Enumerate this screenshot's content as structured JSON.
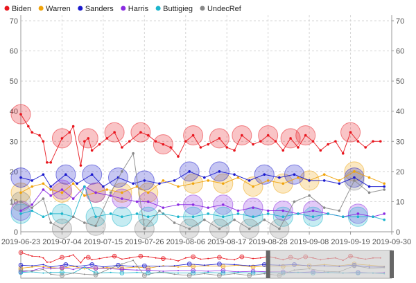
{
  "chart_data": {
    "type": "scatter",
    "legend_position": "top-left",
    "grid": true,
    "ylim": [
      0,
      70
    ],
    "y_ticks": [
      "0",
      "10",
      "20",
      "30",
      "40",
      "50",
      "60",
      "70"
    ],
    "x_ticks": [
      "2019-06-23",
      "2019-07-04",
      "2019-07-15",
      "2019-07-26",
      "2019-08-06",
      "2019-08-17",
      "2019-08-28",
      "2019-09-08",
      "2019-09-19",
      "2019-09-30"
    ],
    "xlim": [
      "2019-06-23",
      "2019-09-30"
    ],
    "series": [
      {
        "name": "Biden",
        "color": "#e8151d",
        "points": [
          {
            "date": "2019-06-23",
            "value": 39,
            "big": true
          },
          {
            "date": "2019-06-25",
            "value": 35
          },
          {
            "date": "2019-06-26",
            "value": 33
          },
          {
            "date": "2019-06-28",
            "value": 32
          },
          {
            "date": "2019-06-29",
            "value": 30
          },
          {
            "date": "2019-06-30",
            "value": 23
          },
          {
            "date": "2019-07-01",
            "value": 23
          },
          {
            "date": "2019-07-04",
            "value": 31,
            "big": true
          },
          {
            "date": "2019-07-06",
            "value": 33
          },
          {
            "date": "2019-07-07",
            "value": 35
          },
          {
            "date": "2019-07-09",
            "value": 22
          },
          {
            "date": "2019-07-10",
            "value": 30
          },
          {
            "date": "2019-07-11",
            "value": 31,
            "big": true
          },
          {
            "date": "2019-07-12",
            "value": 27
          },
          {
            "date": "2019-07-14",
            "value": 29
          },
          {
            "date": "2019-07-16",
            "value": 31
          },
          {
            "date": "2019-07-18",
            "value": 33,
            "big": true
          },
          {
            "date": "2019-07-20",
            "value": 28
          },
          {
            "date": "2019-07-22",
            "value": 30
          },
          {
            "date": "2019-07-25",
            "value": 33,
            "big": true
          },
          {
            "date": "2019-07-27",
            "value": 32
          },
          {
            "date": "2019-07-29",
            "value": 30
          },
          {
            "date": "2019-07-31",
            "value": 29,
            "big": true
          },
          {
            "date": "2019-08-02",
            "value": 28
          },
          {
            "date": "2019-08-04",
            "value": 25
          },
          {
            "date": "2019-08-06",
            "value": 30
          },
          {
            "date": "2019-08-08",
            "value": 32,
            "big": true
          },
          {
            "date": "2019-08-10",
            "value": 28
          },
          {
            "date": "2019-08-12",
            "value": 29
          },
          {
            "date": "2019-08-15",
            "value": 31,
            "big": true
          },
          {
            "date": "2019-08-17",
            "value": 28
          },
          {
            "date": "2019-08-19",
            "value": 27
          },
          {
            "date": "2019-08-21",
            "value": 32,
            "big": true
          },
          {
            "date": "2019-08-24",
            "value": 29
          },
          {
            "date": "2019-08-26",
            "value": 30
          },
          {
            "date": "2019-08-28",
            "value": 32,
            "big": true
          },
          {
            "date": "2019-08-30",
            "value": 30
          },
          {
            "date": "2019-09-01",
            "value": 27
          },
          {
            "date": "2019-09-03",
            "value": 31,
            "big": true
          },
          {
            "date": "2019-09-05",
            "value": 28
          },
          {
            "date": "2019-09-07",
            "value": 32,
            "big": true
          },
          {
            "date": "2019-09-09",
            "value": 30
          },
          {
            "date": "2019-09-11",
            "value": 27
          },
          {
            "date": "2019-09-13",
            "value": 29
          },
          {
            "date": "2019-09-15",
            "value": 30
          },
          {
            "date": "2019-09-17",
            "value": 26
          },
          {
            "date": "2019-09-19",
            "value": 33,
            "big": true
          },
          {
            "date": "2019-09-21",
            "value": 30
          },
          {
            "date": "2019-09-23",
            "value": 28
          },
          {
            "date": "2019-09-25",
            "value": 30
          },
          {
            "date": "2019-09-27",
            "value": 30
          }
        ]
      },
      {
        "name": "Warren",
        "color": "#f0a30a",
        "points": [
          {
            "date": "2019-06-23",
            "value": 13,
            "big": true
          },
          {
            "date": "2019-06-26",
            "value": 15
          },
          {
            "date": "2019-06-29",
            "value": 16
          },
          {
            "date": "2019-07-01",
            "value": 14
          },
          {
            "date": "2019-07-04",
            "value": 13,
            "big": true
          },
          {
            "date": "2019-07-07",
            "value": 16
          },
          {
            "date": "2019-07-10",
            "value": 12
          },
          {
            "date": "2019-07-13",
            "value": 13,
            "big": true
          },
          {
            "date": "2019-07-16",
            "value": 14
          },
          {
            "date": "2019-07-20",
            "value": 13,
            "big": true
          },
          {
            "date": "2019-07-24",
            "value": 15
          },
          {
            "date": "2019-07-27",
            "value": 13,
            "big": true
          },
          {
            "date": "2019-07-31",
            "value": 17
          },
          {
            "date": "2019-08-04",
            "value": 15
          },
          {
            "date": "2019-08-08",
            "value": 16,
            "big": true
          },
          {
            "date": "2019-08-12",
            "value": 17
          },
          {
            "date": "2019-08-16",
            "value": 16,
            "big": true
          },
          {
            "date": "2019-08-20",
            "value": 18
          },
          {
            "date": "2019-08-24",
            "value": 15,
            "big": true
          },
          {
            "date": "2019-08-28",
            "value": 17
          },
          {
            "date": "2019-09-01",
            "value": 16,
            "big": true
          },
          {
            "date": "2019-09-05",
            "value": 18
          },
          {
            "date": "2019-09-08",
            "value": 17,
            "big": true
          },
          {
            "date": "2019-09-12",
            "value": 19
          },
          {
            "date": "2019-09-16",
            "value": 17
          },
          {
            "date": "2019-09-20",
            "value": 20,
            "big": true
          },
          {
            "date": "2019-09-24",
            "value": 18
          },
          {
            "date": "2019-09-28",
            "value": 16
          }
        ]
      },
      {
        "name": "Sanders",
        "color": "#1a1acd",
        "points": [
          {
            "date": "2019-06-23",
            "value": 18,
            "big": true
          },
          {
            "date": "2019-06-26",
            "value": 17
          },
          {
            "date": "2019-06-29",
            "value": 19
          },
          {
            "date": "2019-07-01",
            "value": 15
          },
          {
            "date": "2019-07-05",
            "value": 19,
            "big": true
          },
          {
            "date": "2019-07-08",
            "value": 16
          },
          {
            "date": "2019-07-12",
            "value": 19,
            "big": true
          },
          {
            "date": "2019-07-15",
            "value": 15
          },
          {
            "date": "2019-07-19",
            "value": 18,
            "big": true
          },
          {
            "date": "2019-07-23",
            "value": 16
          },
          {
            "date": "2019-07-26",
            "value": 17,
            "big": true
          },
          {
            "date": "2019-07-30",
            "value": 16
          },
          {
            "date": "2019-08-03",
            "value": 17
          },
          {
            "date": "2019-08-07",
            "value": 20,
            "big": true
          },
          {
            "date": "2019-08-11",
            "value": 18
          },
          {
            "date": "2019-08-15",
            "value": 20,
            "big": true
          },
          {
            "date": "2019-08-19",
            "value": 19
          },
          {
            "date": "2019-08-23",
            "value": 17
          },
          {
            "date": "2019-08-27",
            "value": 19,
            "big": true
          },
          {
            "date": "2019-08-31",
            "value": 18
          },
          {
            "date": "2019-09-04",
            "value": 19,
            "big": true
          },
          {
            "date": "2019-09-08",
            "value": 17
          },
          {
            "date": "2019-09-12",
            "value": 17
          },
          {
            "date": "2019-09-16",
            "value": 16
          },
          {
            "date": "2019-09-20",
            "value": 18,
            "big": true
          },
          {
            "date": "2019-09-24",
            "value": 15
          },
          {
            "date": "2019-09-28",
            "value": 15
          }
        ]
      },
      {
        "name": "Harris",
        "color": "#8a2be2",
        "points": [
          {
            "date": "2019-06-23",
            "value": 7,
            "big": true
          },
          {
            "date": "2019-06-26",
            "value": 9
          },
          {
            "date": "2019-06-29",
            "value": 14
          },
          {
            "date": "2019-07-01",
            "value": 12
          },
          {
            "date": "2019-07-04",
            "value": 14,
            "big": true
          },
          {
            "date": "2019-07-07",
            "value": 11
          },
          {
            "date": "2019-07-10",
            "value": 15
          },
          {
            "date": "2019-07-13",
            "value": 13,
            "big": true
          },
          {
            "date": "2019-07-17",
            "value": 12
          },
          {
            "date": "2019-07-20",
            "value": 11,
            "big": true
          },
          {
            "date": "2019-07-24",
            "value": 10
          },
          {
            "date": "2019-07-27",
            "value": 10,
            "big": true
          },
          {
            "date": "2019-07-31",
            "value": 8
          },
          {
            "date": "2019-08-04",
            "value": 9
          },
          {
            "date": "2019-08-08",
            "value": 9,
            "big": true
          },
          {
            "date": "2019-08-12",
            "value": 8
          },
          {
            "date": "2019-08-16",
            "value": 9,
            "big": true
          },
          {
            "date": "2019-08-20",
            "value": 7
          },
          {
            "date": "2019-08-24",
            "value": 8,
            "big": true
          },
          {
            "date": "2019-08-28",
            "value": 7
          },
          {
            "date": "2019-09-01",
            "value": 7,
            "big": true
          },
          {
            "date": "2019-09-05",
            "value": 6
          },
          {
            "date": "2019-09-09",
            "value": 7,
            "big": true
          },
          {
            "date": "2019-09-13",
            "value": 6
          },
          {
            "date": "2019-09-17",
            "value": 5
          },
          {
            "date": "2019-09-21",
            "value": 6,
            "big": true
          },
          {
            "date": "2019-09-25",
            "value": 5
          },
          {
            "date": "2019-09-28",
            "value": 6
          }
        ]
      },
      {
        "name": "Buttigieg",
        "color": "#1cb5cc",
        "points": [
          {
            "date": "2019-06-23",
            "value": 6,
            "big": true
          },
          {
            "date": "2019-06-26",
            "value": 7
          },
          {
            "date": "2019-06-29",
            "value": 5
          },
          {
            "date": "2019-07-01",
            "value": 6
          },
          {
            "date": "2019-07-04",
            "value": 6,
            "big": true
          },
          {
            "date": "2019-07-07",
            "value": 5
          },
          {
            "date": "2019-07-10",
            "value": 15
          },
          {
            "date": "2019-07-13",
            "value": 5,
            "big": true
          },
          {
            "date": "2019-07-17",
            "value": 6
          },
          {
            "date": "2019-07-20",
            "value": 5,
            "big": true
          },
          {
            "date": "2019-07-24",
            "value": 6
          },
          {
            "date": "2019-07-27",
            "value": 5,
            "big": true
          },
          {
            "date": "2019-07-31",
            "value": 6
          },
          {
            "date": "2019-08-04",
            "value": 5
          },
          {
            "date": "2019-08-08",
            "value": 5,
            "big": true
          },
          {
            "date": "2019-08-12",
            "value": 6
          },
          {
            "date": "2019-08-16",
            "value": 5,
            "big": true
          },
          {
            "date": "2019-08-20",
            "value": 6
          },
          {
            "date": "2019-08-24",
            "value": 5,
            "big": true
          },
          {
            "date": "2019-08-28",
            "value": 6
          },
          {
            "date": "2019-09-01",
            "value": 5,
            "big": true
          },
          {
            "date": "2019-09-05",
            "value": 6
          },
          {
            "date": "2019-09-09",
            "value": 5,
            "big": true
          },
          {
            "date": "2019-09-13",
            "value": 6
          },
          {
            "date": "2019-09-17",
            "value": 5
          },
          {
            "date": "2019-09-21",
            "value": 5,
            "big": true
          },
          {
            "date": "2019-09-25",
            "value": 5
          },
          {
            "date": "2019-09-28",
            "value": 4
          }
        ]
      },
      {
        "name": "UndecRef",
        "color": "#888888",
        "points": [
          {
            "date": "2019-06-23",
            "value": 10,
            "big": true
          },
          {
            "date": "2019-06-26",
            "value": 8
          },
          {
            "date": "2019-06-29",
            "value": 11
          },
          {
            "date": "2019-07-01",
            "value": 3
          },
          {
            "date": "2019-07-04",
            "value": 1,
            "big": true
          },
          {
            "date": "2019-07-07",
            "value": 5
          },
          {
            "date": "2019-07-10",
            "value": 3
          },
          {
            "date": "2019-07-13",
            "value": 2,
            "big": true
          },
          {
            "date": "2019-07-17",
            "value": 13
          },
          {
            "date": "2019-07-20",
            "value": 20
          },
          {
            "date": "2019-07-23",
            "value": 26
          },
          {
            "date": "2019-07-26",
            "value": 1,
            "big": true
          },
          {
            "date": "2019-07-30",
            "value": 7
          },
          {
            "date": "2019-08-03",
            "value": 3
          },
          {
            "date": "2019-08-07",
            "value": 1,
            "big": true
          },
          {
            "date": "2019-08-11",
            "value": 4
          },
          {
            "date": "2019-08-15",
            "value": 1,
            "big": true
          },
          {
            "date": "2019-08-19",
            "value": 4
          },
          {
            "date": "2019-08-23",
            "value": 1,
            "big": true
          },
          {
            "date": "2019-08-27",
            "value": 4
          },
          {
            "date": "2019-08-31",
            "value": 1,
            "big": true
          },
          {
            "date": "2019-09-04",
            "value": 10
          },
          {
            "date": "2019-09-08",
            "value": 12
          },
          {
            "date": "2019-09-12",
            "value": 8
          },
          {
            "date": "2019-09-16",
            "value": 7
          },
          {
            "date": "2019-09-20",
            "value": 17,
            "big": true
          },
          {
            "date": "2019-09-24",
            "value": 13
          },
          {
            "date": "2019-09-28",
            "value": 14
          }
        ]
      }
    ],
    "navigator": {
      "range_start": "2019-06-23",
      "range_end": "2019-09-30",
      "selected_start": "2019-06-23",
      "selected_end": "2019-08-28"
    }
  }
}
